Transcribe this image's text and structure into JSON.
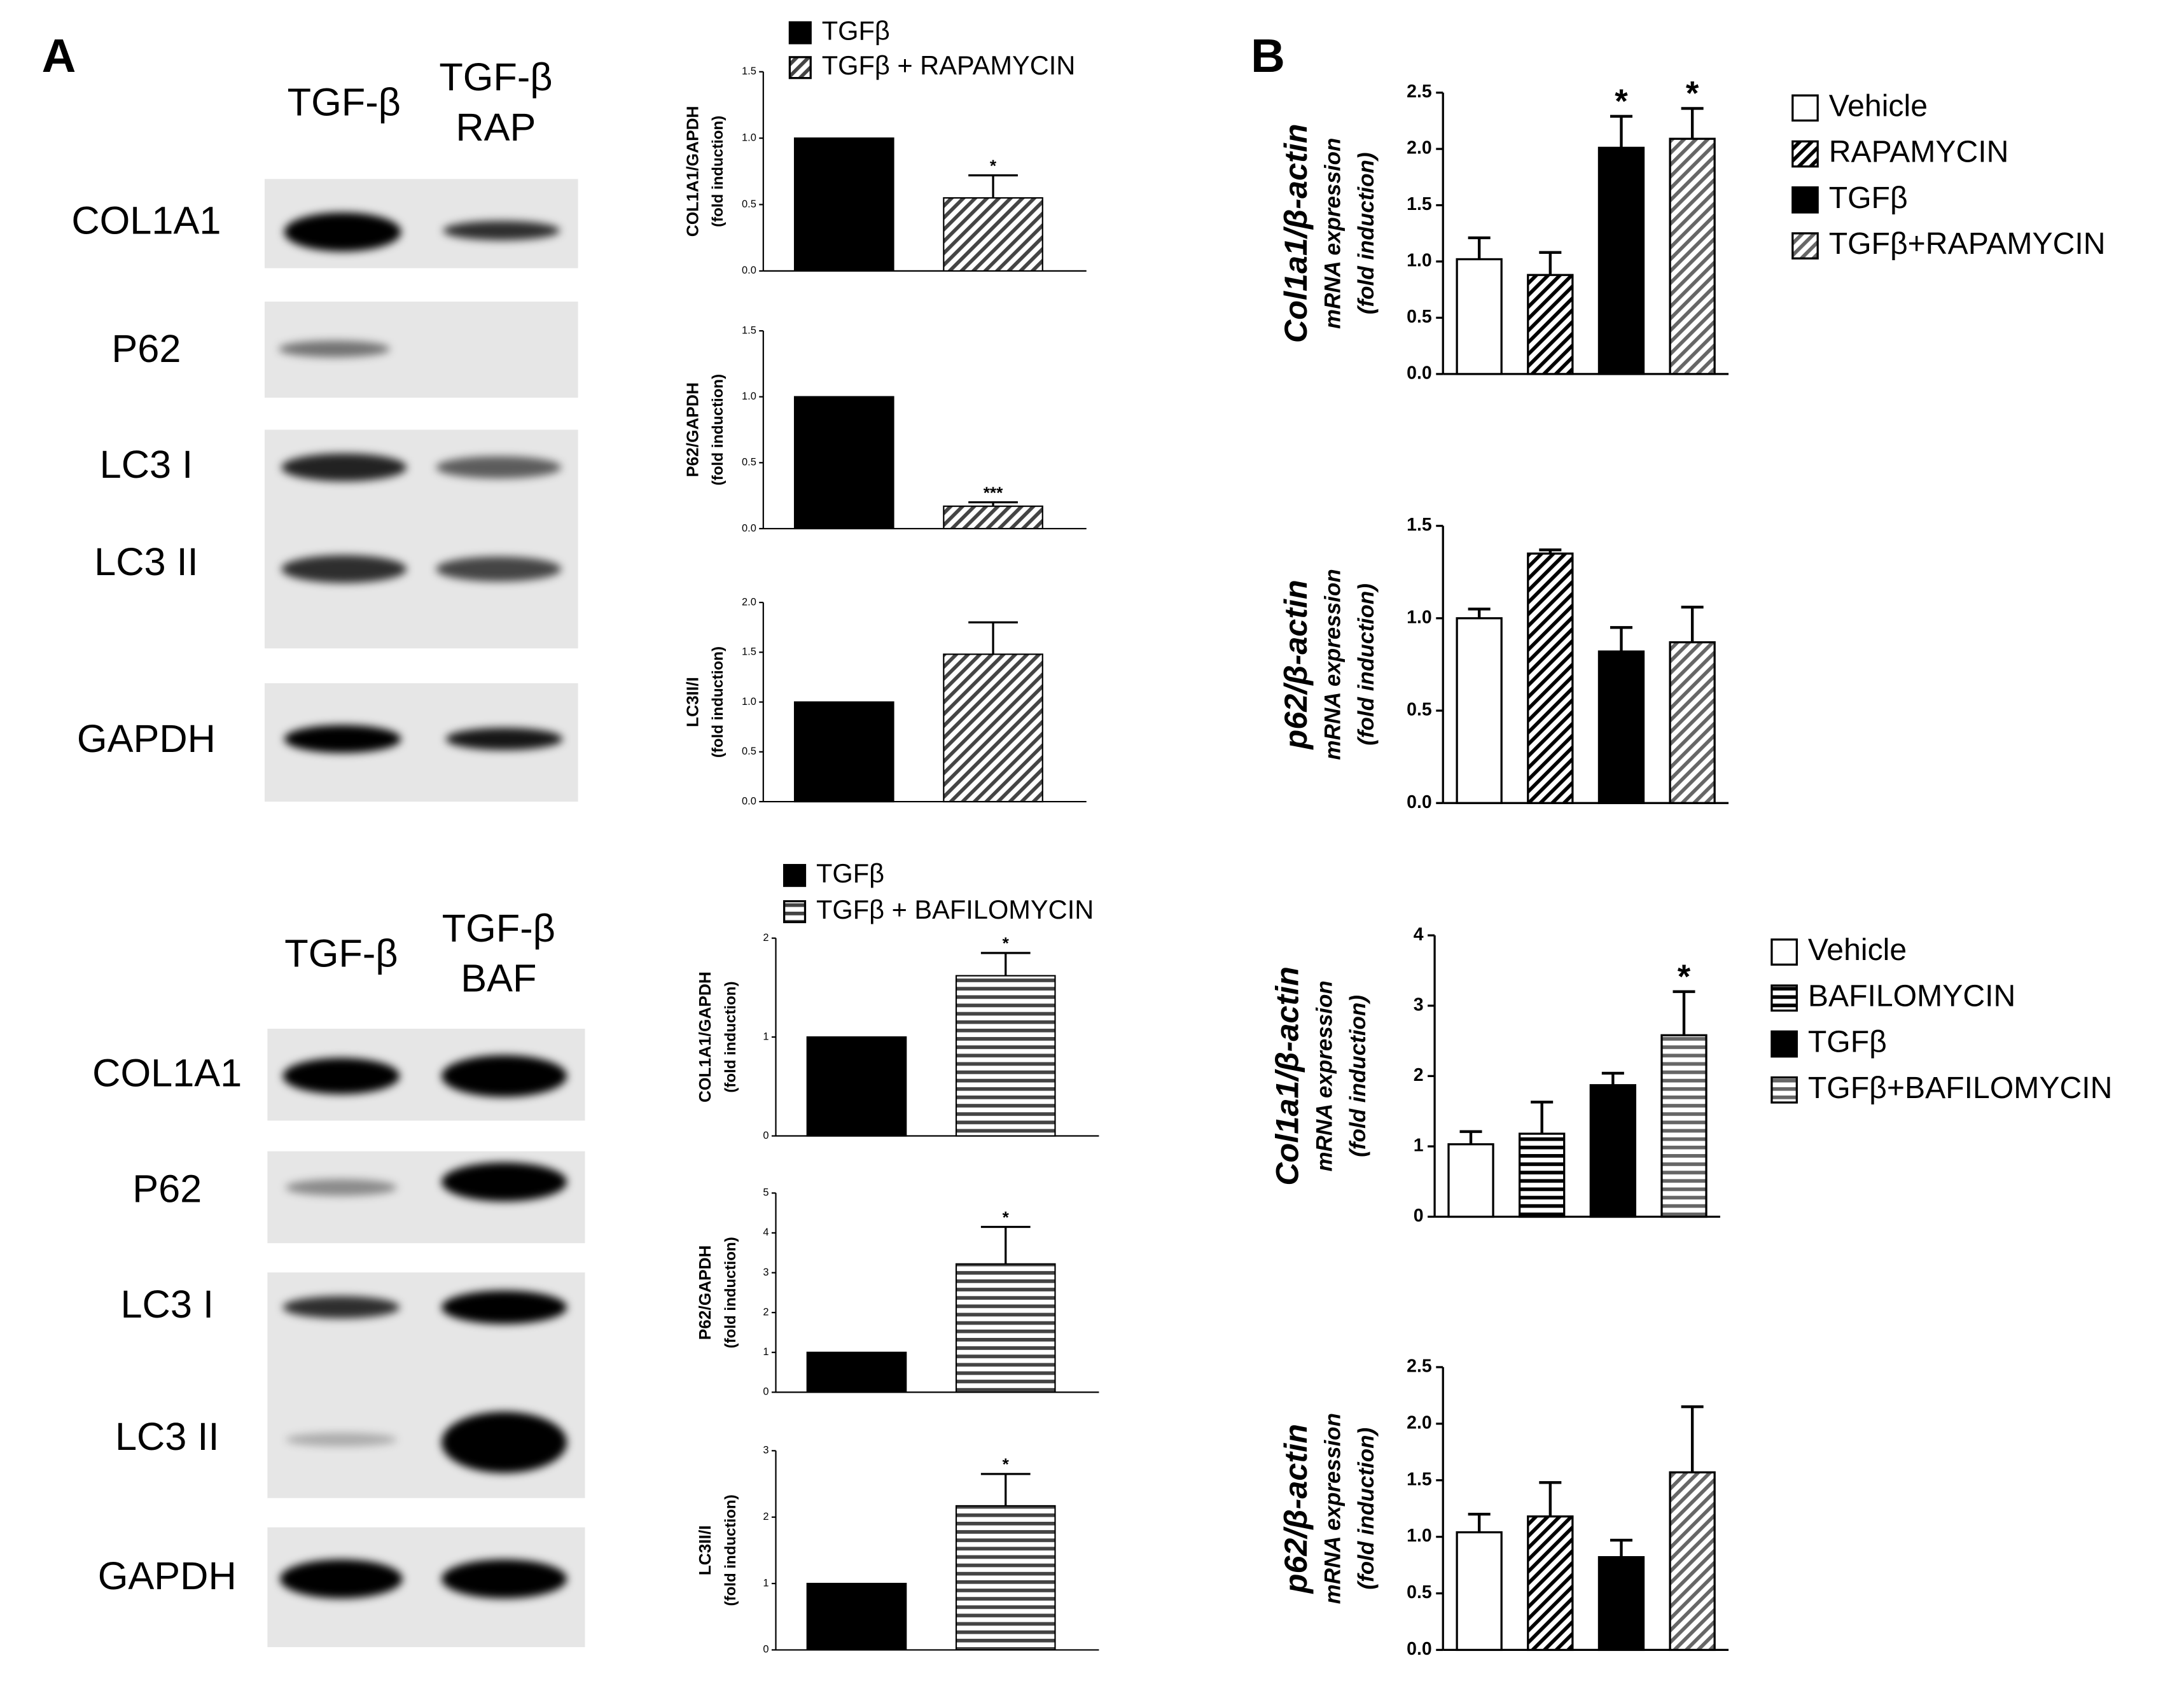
{
  "panel_labels": [
    "A",
    "B"
  ],
  "blots": [
    {
      "lanes": [
        [
          "TGF-β"
        ],
        [
          "TGF-β",
          "RAP"
        ]
      ],
      "rows": [
        "COL1A1",
        "P62",
        "LC3 I",
        "LC3 II",
        "GAPDH"
      ]
    },
    {
      "lanes": [
        [
          "TGF-β"
        ],
        [
          "TGF-β",
          "BAF"
        ]
      ],
      "rows": [
        "COL1A1",
        "P62",
        "LC3 I",
        "LC3 II",
        "GAPDH"
      ]
    }
  ],
  "chart_data": [
    {
      "type": "bar",
      "ylabel": [
        "COL1A1/GAPDH",
        "(fold induction)"
      ],
      "legend": [
        "TGFβ",
        "TGFβ + RAPAMYCIN"
      ],
      "values": [
        1,
        0.55
      ],
      "errors": [
        null,
        0.17
      ],
      "annotations": [
        null,
        "*"
      ],
      "colors": [
        "#000000",
        "#444444"
      ],
      "patterns": [
        "solid",
        "diagonal"
      ],
      "ylim": [
        0,
        1.5
      ],
      "yticks": [
        {
          "value": 0,
          "label": "0.0"
        },
        0.5,
        {
          "value": 1,
          "label": "1.0"
        },
        1.5
      ]
    },
    {
      "type": "bar",
      "ylabel": [
        "P62/GAPDH",
        "(fold induction)"
      ],
      "values": [
        1,
        0.17
      ],
      "errors": [
        null,
        0.03
      ],
      "annotations": [
        null,
        "***"
      ],
      "colors": [
        "#000000",
        "#444444"
      ],
      "patterns": [
        "solid",
        "diagonal"
      ],
      "ylim": [
        0,
        1.5
      ],
      "yticks": [
        {
          "value": 0,
          "label": "0.0"
        },
        0.5,
        {
          "value": 1,
          "label": "1.0"
        },
        1.5
      ]
    },
    {
      "type": "bar",
      "ylabel": [
        "LC3II/I",
        "(fold induction)"
      ],
      "values": [
        1,
        1.48
      ],
      "errors": [
        null,
        0.32
      ],
      "annotations": [
        null,
        null
      ],
      "colors": [
        "#000000",
        "#444444"
      ],
      "patterns": [
        "solid",
        "diagonal"
      ],
      "ylim": [
        0,
        2
      ],
      "yticks": [
        {
          "value": 0,
          "label": "0.0"
        },
        0.5,
        {
          "value": 1,
          "label": "1.0"
        },
        1.5,
        {
          "value": 2,
          "label": "2.0"
        }
      ]
    },
    {
      "type": "bar",
      "ylabel": [
        "COL1A1/GAPDH",
        "(fold induction)"
      ],
      "legend": [
        "TGFβ",
        "TGFβ + BAFILOMYCIN"
      ],
      "values": [
        1,
        1.62
      ],
      "errors": [
        null,
        0.23
      ],
      "annotations": [
        null,
        "*"
      ],
      "colors": [
        "#000000",
        "#444444"
      ],
      "patterns": [
        "solid",
        "horizontal"
      ],
      "ylim": [
        0,
        2
      ],
      "yticks": [
        0,
        1,
        2
      ]
    },
    {
      "type": "bar",
      "ylabel": [
        "P62/GAPDH",
        "(fold induction)"
      ],
      "values": [
        1,
        3.22
      ],
      "errors": [
        null,
        0.93
      ],
      "annotations": [
        null,
        "*"
      ],
      "colors": [
        "#000000",
        "#444444"
      ],
      "patterns": [
        "solid",
        "horizontal"
      ],
      "ylim": [
        0,
        5
      ],
      "yticks": [
        0,
        1,
        2,
        3,
        4,
        5
      ]
    },
    {
      "type": "bar",
      "ylabel": [
        "LC3II/I",
        "(fold induction)"
      ],
      "values": [
        1,
        2.17
      ],
      "errors": [
        null,
        0.48
      ],
      "annotations": [
        null,
        "*"
      ],
      "colors": [
        "#000000",
        "#444444"
      ],
      "patterns": [
        "solid",
        "horizontal"
      ],
      "ylim": [
        0,
        3
      ],
      "yticks": [
        0,
        1,
        2,
        3
      ]
    },
    {
      "type": "bar",
      "ylabel": [
        "Col1a1/β-actin",
        "mRNA expression",
        "(fold induction)"
      ],
      "legend": [
        "Vehicle",
        "RAPAMYCIN",
        "TGFβ",
        "TGFβ+RAPAMYCIN"
      ],
      "values": [
        1.02,
        0.88,
        2.01,
        2.09
      ],
      "errors": [
        0.19,
        0.2,
        0.28,
        0.27
      ],
      "annotations": [
        null,
        null,
        "*",
        "*"
      ],
      "colors": [
        "#ffffff",
        "#000000",
        "#000000",
        "#666666"
      ],
      "patterns": [
        "solid",
        "diagonal",
        "solid",
        "diagonal"
      ],
      "ylim": [
        0,
        2.5
      ],
      "yticks": [
        {
          "value": 0,
          "label": "0.0"
        },
        0.5,
        {
          "value": 1,
          "label": "1.0"
        },
        1.5,
        {
          "value": 2,
          "label": "2.0"
        },
        2.5
      ]
    },
    {
      "type": "bar",
      "ylabel": [
        "p62/β-actin",
        "mRNA expression",
        "(fold induction)"
      ],
      "values": [
        1.0,
        1.35,
        0.82,
        0.87
      ],
      "errors": [
        0.05,
        0.02,
        0.13,
        0.19
      ],
      "annotations": [
        null,
        null,
        null,
        null
      ],
      "colors": [
        "#ffffff",
        "#000000",
        "#000000",
        "#666666"
      ],
      "patterns": [
        "solid",
        "diagonal",
        "solid",
        "diagonal"
      ],
      "ylim": [
        0,
        1.5
      ],
      "yticks": [
        {
          "value": 0,
          "label": "0.0"
        },
        0.5,
        {
          "value": 1,
          "label": "1.0"
        },
        1.5
      ]
    },
    {
      "type": "bar",
      "ylabel": [
        "Col1a1/β-actin",
        "mRNA expression",
        "(fold induction)"
      ],
      "legend": [
        "Vehicle",
        "BAFILOMYCIN",
        "TGFβ",
        "TGFβ+BAFILOMYCIN"
      ],
      "values": [
        1.03,
        1.18,
        1.87,
        2.58
      ],
      "errors": [
        0.18,
        0.45,
        0.17,
        0.62
      ],
      "annotations": [
        null,
        null,
        null,
        "*"
      ],
      "colors": [
        "#ffffff",
        "#000000",
        "#000000",
        "#666666"
      ],
      "patterns": [
        "solid",
        "horizontal",
        "solid",
        "horizontal"
      ],
      "ylim": [
        0,
        4
      ],
      "yticks": [
        0,
        1,
        2,
        3,
        4
      ]
    },
    {
      "type": "bar",
      "ylabel": [
        "p62/β-actin",
        "mRNA expression",
        "(fold induction)"
      ],
      "values": [
        1.04,
        1.18,
        0.82,
        1.57
      ],
      "errors": [
        0.16,
        0.3,
        0.15,
        0.58
      ],
      "annotations": [
        null,
        null,
        null,
        null
      ],
      "colors": [
        "#ffffff",
        "#000000",
        "#000000",
        "#666666"
      ],
      "patterns": [
        "solid",
        "diagonal",
        "solid",
        "diagonal"
      ],
      "ylim": [
        0,
        2.5
      ],
      "yticks": [
        {
          "value": 0,
          "label": "0.0"
        },
        0.5,
        {
          "value": 1,
          "label": "1.0"
        },
        1.5,
        {
          "value": 2,
          "label": "2.0"
        },
        2.5
      ]
    }
  ]
}
